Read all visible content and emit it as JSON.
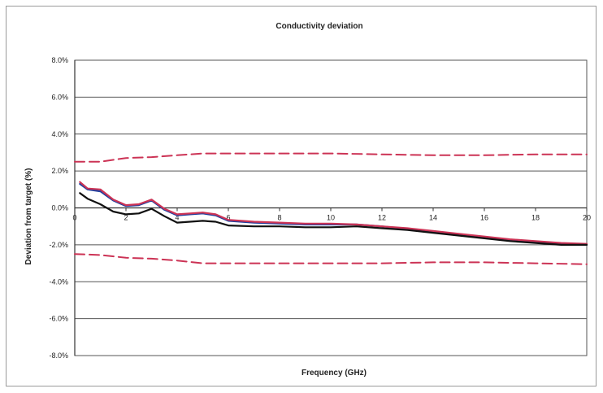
{
  "chart_data": {
    "type": "line",
    "title": "Conductivity deviation",
    "xlabel": "Frequency (GHz)",
    "ylabel": "Deviation from target (%)",
    "xlim": [
      0,
      20
    ],
    "ylim": [
      -8,
      8
    ],
    "x_ticks": [
      0,
      2,
      4,
      6,
      8,
      10,
      12,
      14,
      16,
      18,
      20
    ],
    "y_ticks": [
      8,
      6,
      4,
      2,
      0,
      -2,
      -4,
      -6,
      -8
    ],
    "y_tick_labels": [
      "8.0%",
      "6.0%",
      "4.0%",
      "2.0%",
      "0.0%",
      "-2.0%",
      "-4.0%",
      "-6.0%",
      "-8.0%"
    ],
    "grid": "horizontal",
    "series": [
      {
        "color": "#1f3f9f",
        "dash": "solid",
        "points": [
          [
            0.2,
            1.3
          ],
          [
            0.5,
            1.0
          ],
          [
            1.0,
            0.9
          ],
          [
            1.5,
            0.4
          ],
          [
            2.0,
            0.1
          ],
          [
            2.5,
            0.15
          ],
          [
            3.0,
            0.4
          ],
          [
            3.5,
            -0.1
          ],
          [
            4.0,
            -0.4
          ],
          [
            4.5,
            -0.35
          ],
          [
            5.0,
            -0.3
          ],
          [
            5.5,
            -0.4
          ],
          [
            6.0,
            -0.7
          ],
          [
            7.0,
            -0.8
          ],
          [
            8.0,
            -0.85
          ],
          [
            9.0,
            -0.9
          ],
          [
            10.0,
            -0.9
          ],
          [
            11.0,
            -0.9
          ],
          [
            12.0,
            -1.0
          ],
          [
            13.0,
            -1.15
          ],
          [
            14.0,
            -1.3
          ],
          [
            15.0,
            -1.45
          ],
          [
            16.0,
            -1.6
          ],
          [
            17.0,
            -1.75
          ],
          [
            18.0,
            -1.85
          ],
          [
            19.0,
            -1.95
          ],
          [
            20.0,
            -2.0
          ]
        ]
      },
      {
        "color": "#cc3355",
        "dash": "solid",
        "points": [
          [
            0.2,
            1.4
          ],
          [
            0.5,
            1.05
          ],
          [
            1.0,
            1.0
          ],
          [
            1.5,
            0.45
          ],
          [
            2.0,
            0.15
          ],
          [
            2.5,
            0.2
          ],
          [
            3.0,
            0.45
          ],
          [
            3.5,
            -0.05
          ],
          [
            4.0,
            -0.35
          ],
          [
            4.5,
            -0.3
          ],
          [
            5.0,
            -0.25
          ],
          [
            5.5,
            -0.35
          ],
          [
            6.0,
            -0.65
          ],
          [
            7.0,
            -0.75
          ],
          [
            8.0,
            -0.8
          ],
          [
            9.0,
            -0.85
          ],
          [
            10.0,
            -0.85
          ],
          [
            11.0,
            -0.9
          ],
          [
            12.0,
            -1.0
          ],
          [
            13.0,
            -1.1
          ],
          [
            14.0,
            -1.25
          ],
          [
            15.0,
            -1.4
          ],
          [
            16.0,
            -1.55
          ],
          [
            17.0,
            -1.7
          ],
          [
            18.0,
            -1.8
          ],
          [
            19.0,
            -1.9
          ],
          [
            20.0,
            -1.95
          ]
        ]
      },
      {
        "color": "#111111",
        "dash": "solid",
        "points": [
          [
            0.2,
            0.8
          ],
          [
            0.5,
            0.5
          ],
          [
            1.0,
            0.2
          ],
          [
            1.5,
            -0.2
          ],
          [
            2.0,
            -0.35
          ],
          [
            2.5,
            -0.3
          ],
          [
            3.0,
            -0.05
          ],
          [
            3.5,
            -0.45
          ],
          [
            4.0,
            -0.8
          ],
          [
            4.5,
            -0.75
          ],
          [
            5.0,
            -0.7
          ],
          [
            5.5,
            -0.75
          ],
          [
            6.0,
            -0.95
          ],
          [
            7.0,
            -1.0
          ],
          [
            8.0,
            -1.0
          ],
          [
            9.0,
            -1.05
          ],
          [
            10.0,
            -1.05
          ],
          [
            11.0,
            -1.0
          ],
          [
            12.0,
            -1.1
          ],
          [
            13.0,
            -1.2
          ],
          [
            14.0,
            -1.35
          ],
          [
            15.0,
            -1.5
          ],
          [
            16.0,
            -1.65
          ],
          [
            17.0,
            -1.8
          ],
          [
            18.0,
            -1.9
          ],
          [
            19.0,
            -2.0
          ],
          [
            20.0,
            -2.0
          ]
        ]
      },
      {
        "color": "#cc3355",
        "dash": "dashed",
        "points": [
          [
            0,
            2.5
          ],
          [
            1,
            2.5
          ],
          [
            2,
            2.7
          ],
          [
            3,
            2.75
          ],
          [
            4,
            2.85
          ],
          [
            5,
            2.95
          ],
          [
            6,
            2.95
          ],
          [
            8,
            2.95
          ],
          [
            10,
            2.95
          ],
          [
            12,
            2.9
          ],
          [
            14,
            2.85
          ],
          [
            16,
            2.85
          ],
          [
            18,
            2.9
          ],
          [
            20,
            2.9
          ]
        ]
      },
      {
        "color": "#cc3355",
        "dash": "dashed",
        "points": [
          [
            0,
            -2.5
          ],
          [
            1,
            -2.55
          ],
          [
            2,
            -2.7
          ],
          [
            3,
            -2.75
          ],
          [
            4,
            -2.85
          ],
          [
            5,
            -3.0
          ],
          [
            6,
            -3.0
          ],
          [
            8,
            -3.0
          ],
          [
            10,
            -3.0
          ],
          [
            12,
            -3.0
          ],
          [
            14,
            -2.95
          ],
          [
            16,
            -2.95
          ],
          [
            18,
            -3.0
          ],
          [
            20,
            -3.05
          ]
        ]
      }
    ]
  }
}
